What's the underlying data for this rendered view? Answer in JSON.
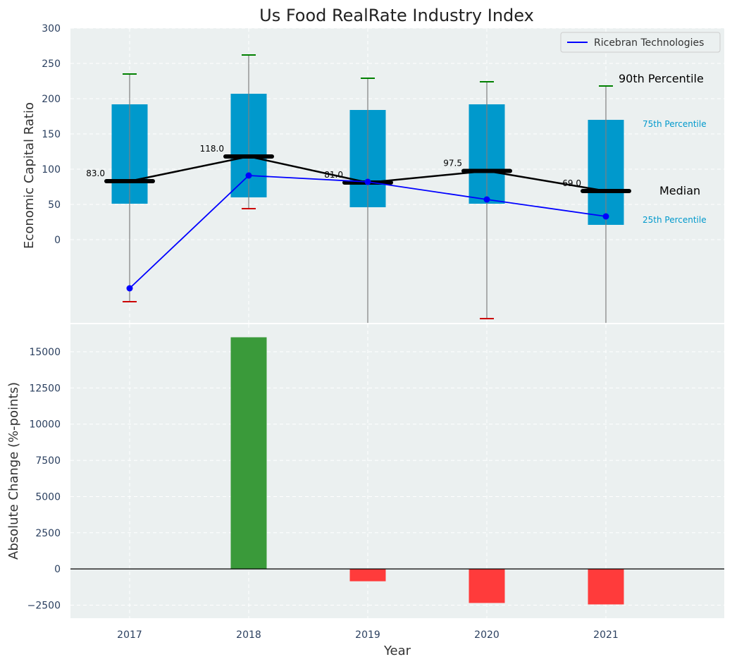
{
  "chart_data": [
    {
      "type": "box",
      "title": "Us Food RealRate Industry Index",
      "ylabel": "Economic Capital Ratio",
      "ylim": [
        -118,
        300
      ],
      "yticks": [
        0,
        50,
        100,
        150,
        200,
        250,
        300
      ],
      "categories": [
        "2017",
        "2018",
        "2019",
        "2020",
        "2021"
      ],
      "boxes": [
        {
          "q1": 51,
          "q3": 192,
          "median": 83.0,
          "median_label": "83.0",
          "p90": 235,
          "min": -88
        },
        {
          "q1": 60,
          "q3": 207,
          "median": 118.0,
          "median_label": "118.0",
          "p90": 262,
          "min": 44
        },
        {
          "q1": 46,
          "q3": 184,
          "median": 81.0,
          "median_label": "81.0",
          "p90": 229,
          "min": -118
        },
        {
          "q1": 51,
          "q3": 192,
          "median": 97.5,
          "median_label": "97.5",
          "p90": 224,
          "min": -112
        },
        {
          "q1": 21,
          "q3": 170,
          "median": 69.0,
          "median_label": "69.0",
          "p90": 218,
          "min": -118
        }
      ],
      "series": [
        {
          "name": "Ricebran Technologies",
          "values": [
            -69,
            91,
            82,
            57,
            33
          ],
          "color": "#0000ff"
        }
      ],
      "annotations": {
        "p90": "90th Percentile",
        "p75": "75th Percentile",
        "median": "Median",
        "p25": "25th Percentile"
      },
      "colors": {
        "box": "#0099cc",
        "median": "#000000",
        "whisker_top": "#008000",
        "whisker_bottom": "#cc0000",
        "stem": "#7f7f7f",
        "plot_bg": "#ebf0f0"
      },
      "grid": true,
      "legend": "top-right"
    },
    {
      "type": "bar",
      "xlabel": "Year",
      "ylabel": "Absolute Change (%-points)",
      "ylim": [
        -3400,
        16900
      ],
      "yticks": [
        -2500,
        0,
        2500,
        5000,
        7500,
        10000,
        12500,
        15000
      ],
      "ytick_labels": [
        "−2500",
        "0",
        "2500",
        "5000",
        "7500",
        "10000",
        "12500",
        "15000"
      ],
      "categories": [
        "2017",
        "2018",
        "2019",
        "2020",
        "2021"
      ],
      "values": [
        0,
        16000,
        -850,
        -2350,
        -2450
      ],
      "colors": {
        "positive": "#3a9a3a",
        "negative": "#ff3b3b"
      },
      "grid": true
    }
  ]
}
